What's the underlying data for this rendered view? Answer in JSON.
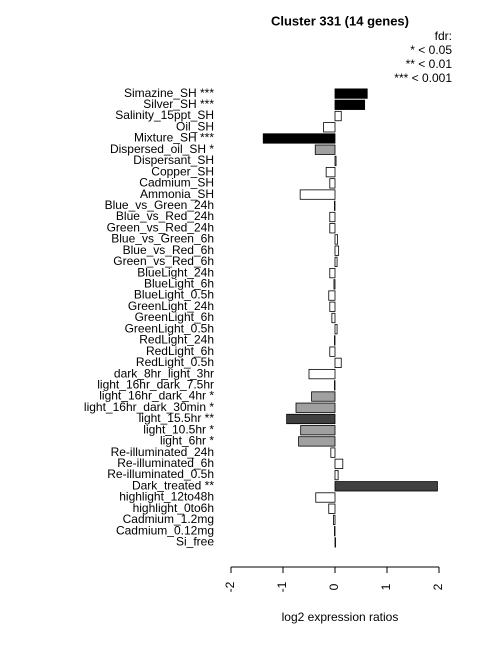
{
  "chart_data": {
    "type": "barh",
    "title": "Cluster 331 (14 genes)",
    "xlabel": "log2 expression ratios",
    "legend": {
      "title": "fdr:",
      "entries": [
        "* < 0.05",
        "** < 0.01",
        "*** < 0.001"
      ]
    },
    "categories": [
      "Simazine_SH ***",
      "Silver_SH ***",
      "Salinity_15ppt_SH",
      "Oil_SH",
      "Mixture_SH ***",
      "Dispersed_oil_SH *",
      "Dispersant_SH",
      "Copper_SH",
      "Cadmium_SH",
      "Ammonia_SH",
      "Blue_vs_Green_24h",
      "Blue_vs_Red_24h",
      "Green_vs_Red_24h",
      "Blue_vs_Green_6h",
      "Blue_vs_Red_6h",
      "Green_vs_Red_6h",
      "BlueLight_24h",
      "BlueLight_6h",
      "BlueLight_0.5h",
      "GreenLight_24h",
      "GreenLight_6h",
      "GreenLight_0.5h",
      "RedLight_24h",
      "RedLight_6h",
      "RedLight_0.5h",
      "dark_8hr_light_3hr",
      "light_16hr_dark_7.5hr",
      "light_16hr_dark_4hr *",
      "light_16hr_dark_30min *",
      "light_15.5hr **",
      "light_10.5hr *",
      "light_6hr *",
      "Re-illuminated_24h",
      "Re-illuminated_6h",
      "Re-illuminated_0.5h",
      "Dark_treated **",
      "highlight_12to48h",
      "highlight_0to6h",
      "Cadmium_1.2mg",
      "Cadmium_0.12mg",
      "Si_free"
    ],
    "values": [
      0.62,
      0.57,
      0.12,
      -0.22,
      -1.38,
      -0.38,
      0.02,
      -0.17,
      -0.1,
      -0.67,
      -0.01,
      -0.1,
      -0.1,
      0.05,
      0.07,
      0.04,
      -0.1,
      -0.02,
      -0.12,
      -0.1,
      -0.06,
      0.04,
      -0.01,
      -0.1,
      0.12,
      -0.5,
      -0.01,
      -0.45,
      -0.75,
      -0.93,
      -0.66,
      -0.7,
      -0.08,
      0.15,
      0.06,
      1.97,
      -0.37,
      -0.12,
      -0.03,
      -0.01,
      0.01
    ],
    "colors": [
      "#000000",
      "#000000",
      "#ffffff",
      "#ffffff",
      "#000000",
      "#a0a0a0",
      "#ffffff",
      "#ffffff",
      "#ffffff",
      "#ffffff",
      "#ffffff",
      "#ffffff",
      "#ffffff",
      "#ffffff",
      "#ffffff",
      "#ffffff",
      "#ffffff",
      "#ffffff",
      "#ffffff",
      "#ffffff",
      "#ffffff",
      "#ffffff",
      "#ffffff",
      "#ffffff",
      "#ffffff",
      "#ffffff",
      "#ffffff",
      "#a0a0a0",
      "#a0a0a0",
      "#404040",
      "#a0a0a0",
      "#a0a0a0",
      "#ffffff",
      "#ffffff",
      "#ffffff",
      "#404040",
      "#ffffff",
      "#ffffff",
      "#ffffff",
      "#ffffff",
      "#ffffff"
    ],
    "xlim": [
      -2,
      2
    ],
    "xticks": [
      -2,
      -1,
      0,
      1,
      2
    ]
  }
}
